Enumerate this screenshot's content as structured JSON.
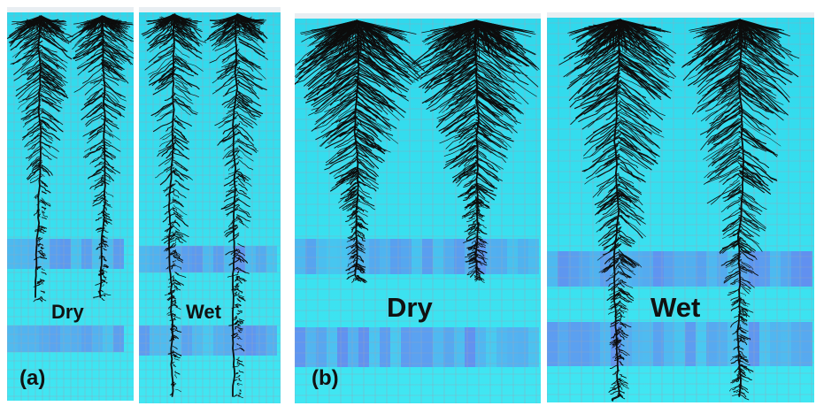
{
  "panel_a": {
    "dry_label": "Dry",
    "wet_label": "Wet",
    "panel_label": "(a)"
  },
  "panel_b": {
    "dry_label": "Dry",
    "wet_label": "Wet",
    "panel_label": "(b)"
  },
  "colors": {
    "background_cyan": "#40e6f2",
    "grid_line": "#9aa4b8",
    "moist_band_blue": "#6b7cf0",
    "root_black": "#0d0d0d"
  }
}
